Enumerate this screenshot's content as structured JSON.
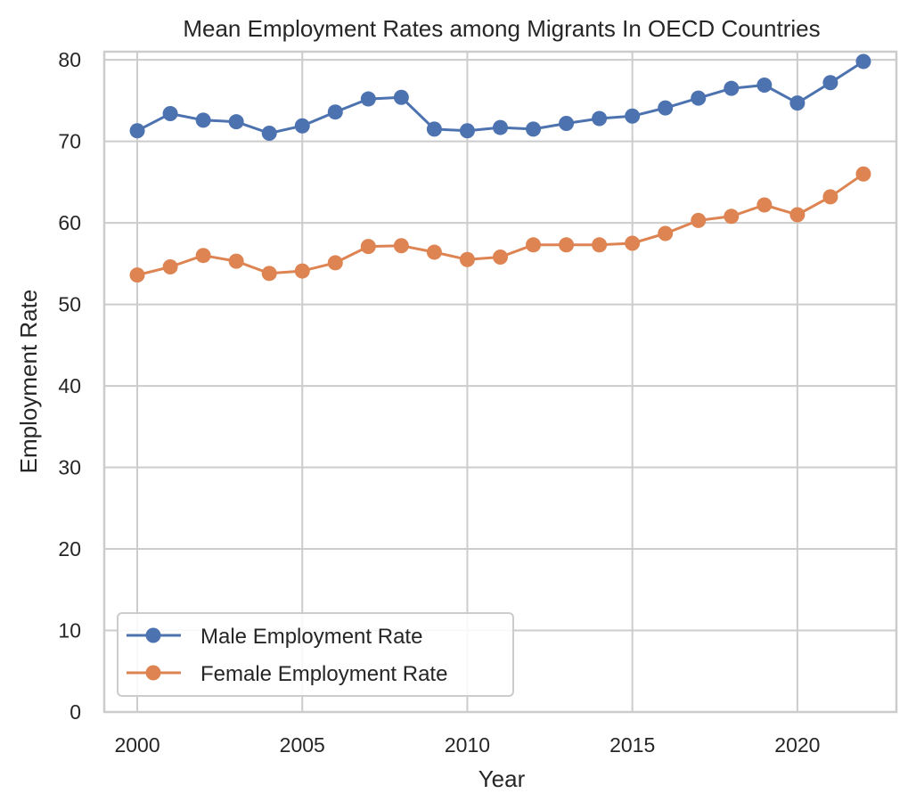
{
  "chart_data": {
    "type": "line",
    "title": "Mean Employment Rates among Migrants In OECD Countries",
    "xlabel": "Year",
    "ylabel": "Employment Rate",
    "xlim": [
      1999,
      2023
    ],
    "ylim": [
      0,
      81
    ],
    "xticks": [
      2000,
      2005,
      2010,
      2015,
      2020
    ],
    "yticks": [
      0,
      10,
      20,
      30,
      40,
      50,
      60,
      70,
      80
    ],
    "grid": true,
    "legend_position": "lower-left",
    "x": [
      2000,
      2001,
      2002,
      2003,
      2004,
      2005,
      2006,
      2007,
      2008,
      2009,
      2010,
      2011,
      2012,
      2013,
      2014,
      2015,
      2016,
      2017,
      2018,
      2019,
      2020,
      2021,
      2022
    ],
    "series": [
      {
        "name": "Male Employment Rate",
        "color": "#4c72b0",
        "values": [
          71.3,
          73.4,
          72.6,
          72.4,
          71.0,
          71.9,
          73.6,
          75.2,
          75.4,
          71.5,
          71.3,
          71.7,
          71.5,
          72.2,
          72.8,
          73.1,
          74.1,
          75.3,
          76.5,
          76.9,
          74.7,
          77.2,
          79.8
        ]
      },
      {
        "name": "Female Employment Rate",
        "color": "#dd8452",
        "values": [
          53.6,
          54.6,
          56.0,
          55.3,
          53.8,
          54.1,
          55.1,
          57.1,
          57.2,
          56.4,
          55.5,
          55.8,
          57.3,
          57.3,
          57.3,
          57.5,
          58.7,
          60.3,
          60.8,
          62.2,
          61.0,
          63.2,
          66.0
        ]
      }
    ]
  }
}
